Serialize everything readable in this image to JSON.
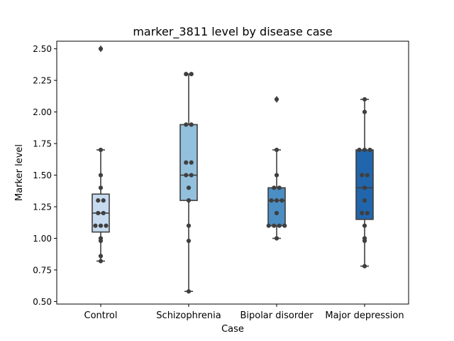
{
  "chart_data": {
    "type": "box",
    "title": "marker_3811 level by disease case",
    "xlabel": "Case",
    "ylabel": "Marker level",
    "ylim": [
      0.48,
      2.56
    ],
    "yticks": [
      "0.50",
      "0.75",
      "1.00",
      "1.25",
      "1.50",
      "1.75",
      "2.00",
      "2.25",
      "2.50"
    ],
    "grid": false,
    "categories": [
      "Control",
      "Schizophrenia",
      "Bipolar disorder",
      "Major depression"
    ],
    "colors": [
      "#c6dbef",
      "#93c0dc",
      "#4b8ec4",
      "#2166ac"
    ],
    "boxes": [
      {
        "q1": 1.05,
        "median": 1.2,
        "q3": 1.35,
        "whisker_low": 0.82,
        "whisker_high": 1.7,
        "outliers": [
          2.5
        ]
      },
      {
        "q1": 1.3,
        "median": 1.5,
        "q3": 1.9,
        "whisker_low": 0.58,
        "whisker_high": 2.3,
        "outliers": []
      },
      {
        "q1": 1.1,
        "median": 1.3,
        "q3": 1.4,
        "whisker_low": 1.0,
        "whisker_high": 1.7,
        "outliers": [
          2.1
        ]
      },
      {
        "q1": 1.15,
        "median": 1.4,
        "q3": 1.7,
        "whisker_low": 0.78,
        "whisker_high": 2.1,
        "outliers": []
      }
    ],
    "points": [
      [
        2.5,
        1.7,
        1.5,
        1.4,
        1.3,
        1.3,
        1.2,
        1.2,
        1.1,
        1.1,
        1.1,
        1.0,
        0.98,
        0.86,
        0.82
      ],
      [
        2.3,
        2.3,
        1.9,
        1.9,
        1.6,
        1.6,
        1.5,
        1.5,
        1.4,
        1.3,
        1.1,
        0.98,
        0.58
      ],
      [
        2.1,
        1.7,
        1.5,
        1.4,
        1.4,
        1.3,
        1.3,
        1.3,
        1.2,
        1.1,
        1.1,
        1.1,
        1.1,
        1.0
      ],
      [
        2.1,
        2.0,
        1.7,
        1.7,
        1.7,
        1.5,
        1.5,
        1.4,
        1.3,
        1.2,
        1.2,
        1.1,
        1.0,
        0.98,
        0.78
      ]
    ]
  }
}
